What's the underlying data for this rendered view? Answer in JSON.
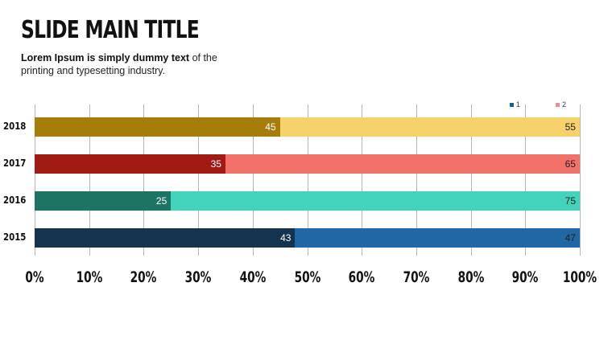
{
  "slide": {
    "title": "SLIDE MAIN TITLE",
    "subtitle_bold": "Lorem Ipsum is simply dummy text",
    "subtitle_rest": " of the printing and typesetting industry."
  },
  "legend": [
    {
      "label": "1",
      "color": "#1f5e8e"
    },
    {
      "label": "2",
      "color": "#e8909a"
    }
  ],
  "chart_data": {
    "type": "bar",
    "orientation": "horizontal",
    "stacking": "percent",
    "title": "",
    "xlabel": "",
    "ylabel": "",
    "categories": [
      "2018",
      "2017",
      "2016",
      "2015"
    ],
    "series": [
      {
        "name": "1",
        "values": [
          45,
          35,
          25,
          43
        ],
        "colors": [
          "#a67c0a",
          "#a11b12",
          "#1e7462",
          "#13334f"
        ]
      },
      {
        "name": "2",
        "values": [
          55,
          65,
          75,
          47
        ],
        "colors": [
          "#f6d36a",
          "#f2726a",
          "#43d3bb",
          "#1f68a3"
        ]
      }
    ],
    "xticks": [
      "0%",
      "10%",
      "20%",
      "30%",
      "40%",
      "50%",
      "60%",
      "70%",
      "80%",
      "90%",
      "100%"
    ],
    "xlim": [
      0,
      100
    ],
    "grid": "vertical",
    "legend_position": "top-right"
  }
}
